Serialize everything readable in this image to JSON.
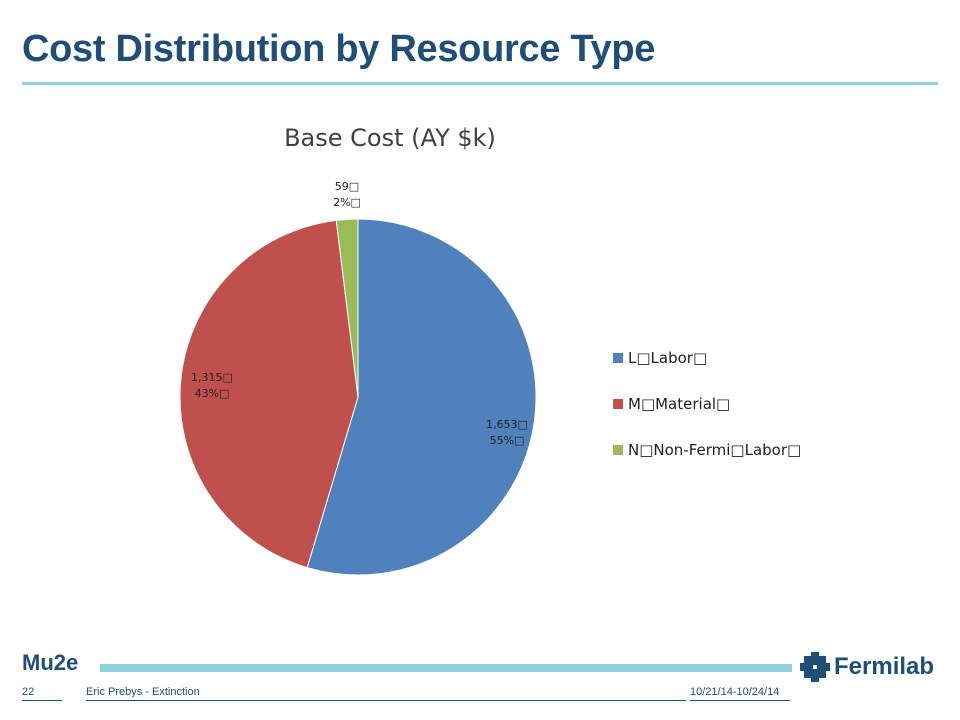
{
  "slide": {
    "title": "Cost Distribution by Resource Type",
    "footer_left_logo": "Mu2e",
    "page_number": "22",
    "author": "Eric Prebys - Extinction",
    "date": "10/21/14-10/24/14",
    "org": "Fermilab"
  },
  "colors": {
    "title": "#1f4e79",
    "accent_rule": "#8ecfe0"
  },
  "chart_data": {
    "type": "pie",
    "title": "Base Cost (AY $k)",
    "legend_position": "right",
    "slices": [
      {
        "legend": "L□Labor□",
        "value": 1653,
        "value_label": "1,653□",
        "percent_label": "55%□",
        "color": "#4f81bd"
      },
      {
        "legend": "M□Material□",
        "value": 1315,
        "value_label": "1,315□",
        "percent_label": "43%□",
        "color": "#c0504d"
      },
      {
        "legend": "N□Non-Fermi□Labor□",
        "value": 59,
        "value_label": "59□",
        "percent_label": "2%□",
        "color": "#9bbb59"
      }
    ]
  }
}
